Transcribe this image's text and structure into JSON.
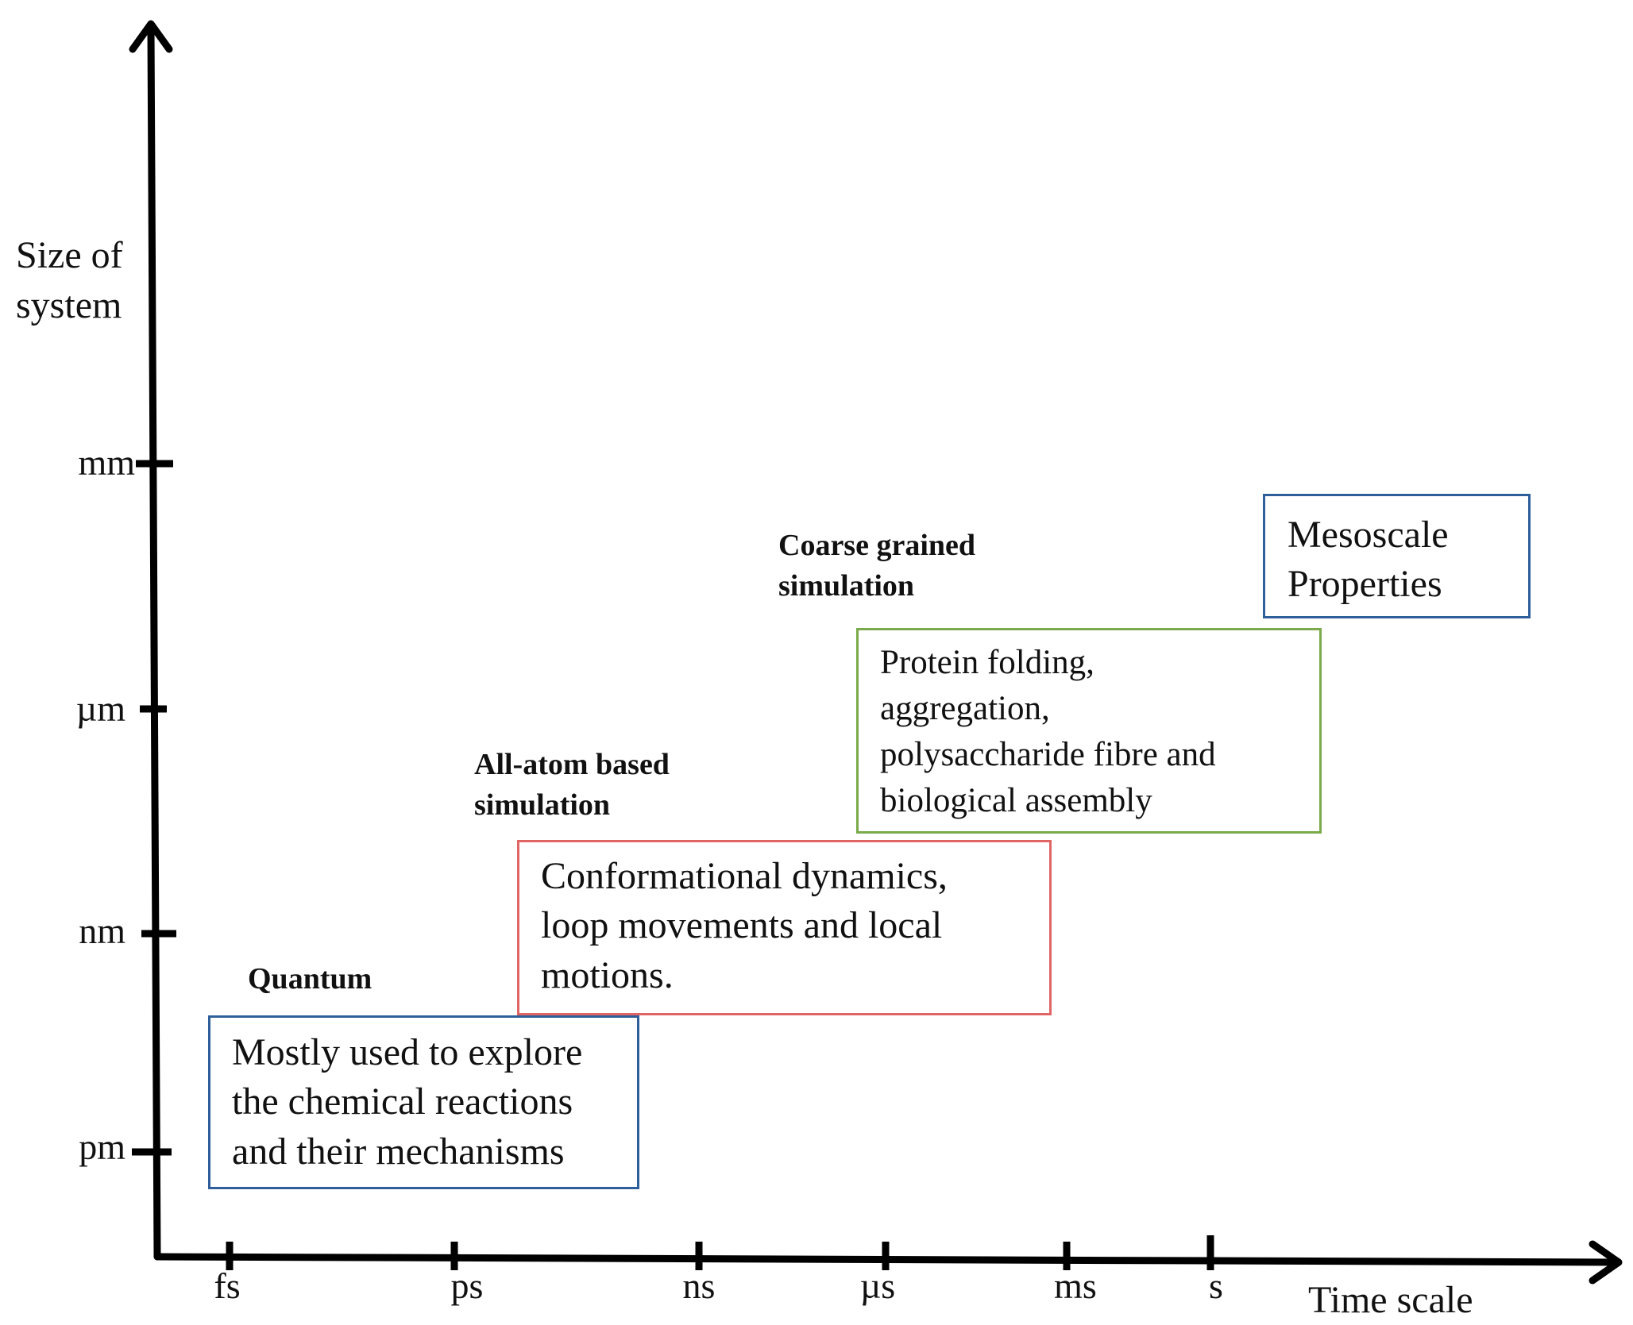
{
  "axes": {
    "y_label": "Size of\nsystem",
    "x_label": "Time scale",
    "y_ticks": [
      "mm",
      "µm",
      "nm",
      "pm"
    ],
    "x_ticks": [
      "fs",
      "ps",
      "ns",
      "µs",
      "ms",
      "s"
    ]
  },
  "methods": {
    "quantum": {
      "title": "Quantum",
      "description": "Mostly used to explore\nthe chemical reactions\nand their mechanisms"
    },
    "all_atom": {
      "title": "All-atom based\nsimulation",
      "description": "Conformational dynamics,\nloop movements and local\nmotions."
    },
    "coarse_grained": {
      "title": "Coarse grained\nsimulation",
      "description": "Protein folding,\naggregation,\npolysaccharide fibre and\nbiological assembly"
    },
    "mesoscale": {
      "description": "Mesoscale\nProperties"
    }
  },
  "colors": {
    "axis": "#000000",
    "quantum_box": "#2f5f9a",
    "all_atom_box": "#e06666",
    "coarse_grained_box": "#7aaa4a",
    "mesoscale_box": "#2f5f9a"
  }
}
